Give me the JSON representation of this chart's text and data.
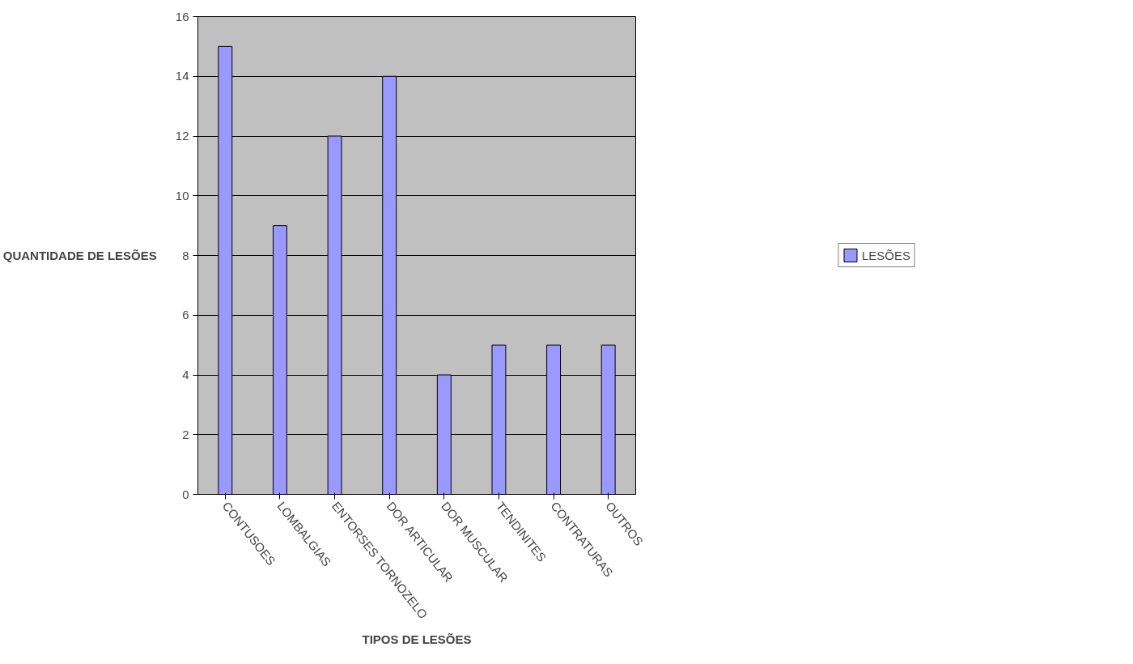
{
  "chart_data": {
    "type": "bar",
    "xlabel": "TIPOS DE LESÕES",
    "ylabel": "QUANTIDADE DE LESÕES",
    "categories": [
      "CONTUSOES",
      "LOMBALGIAS",
      "ENTORSES TORNOZELO",
      "DOR ARTICULAR",
      "DOR MUSCULAR",
      "TENDINITES",
      "CONTRATURAS",
      "OUTROS"
    ],
    "series": [
      {
        "name": "LESÕES",
        "color": "#9999ff",
        "values": [
          15,
          9,
          12,
          14,
          4,
          5,
          5,
          5
        ]
      }
    ],
    "ylim": [
      0,
      16
    ],
    "yticks": [
      0,
      2,
      4,
      6,
      8,
      10,
      12,
      14,
      16
    ],
    "grid": "y",
    "legend": "right"
  }
}
